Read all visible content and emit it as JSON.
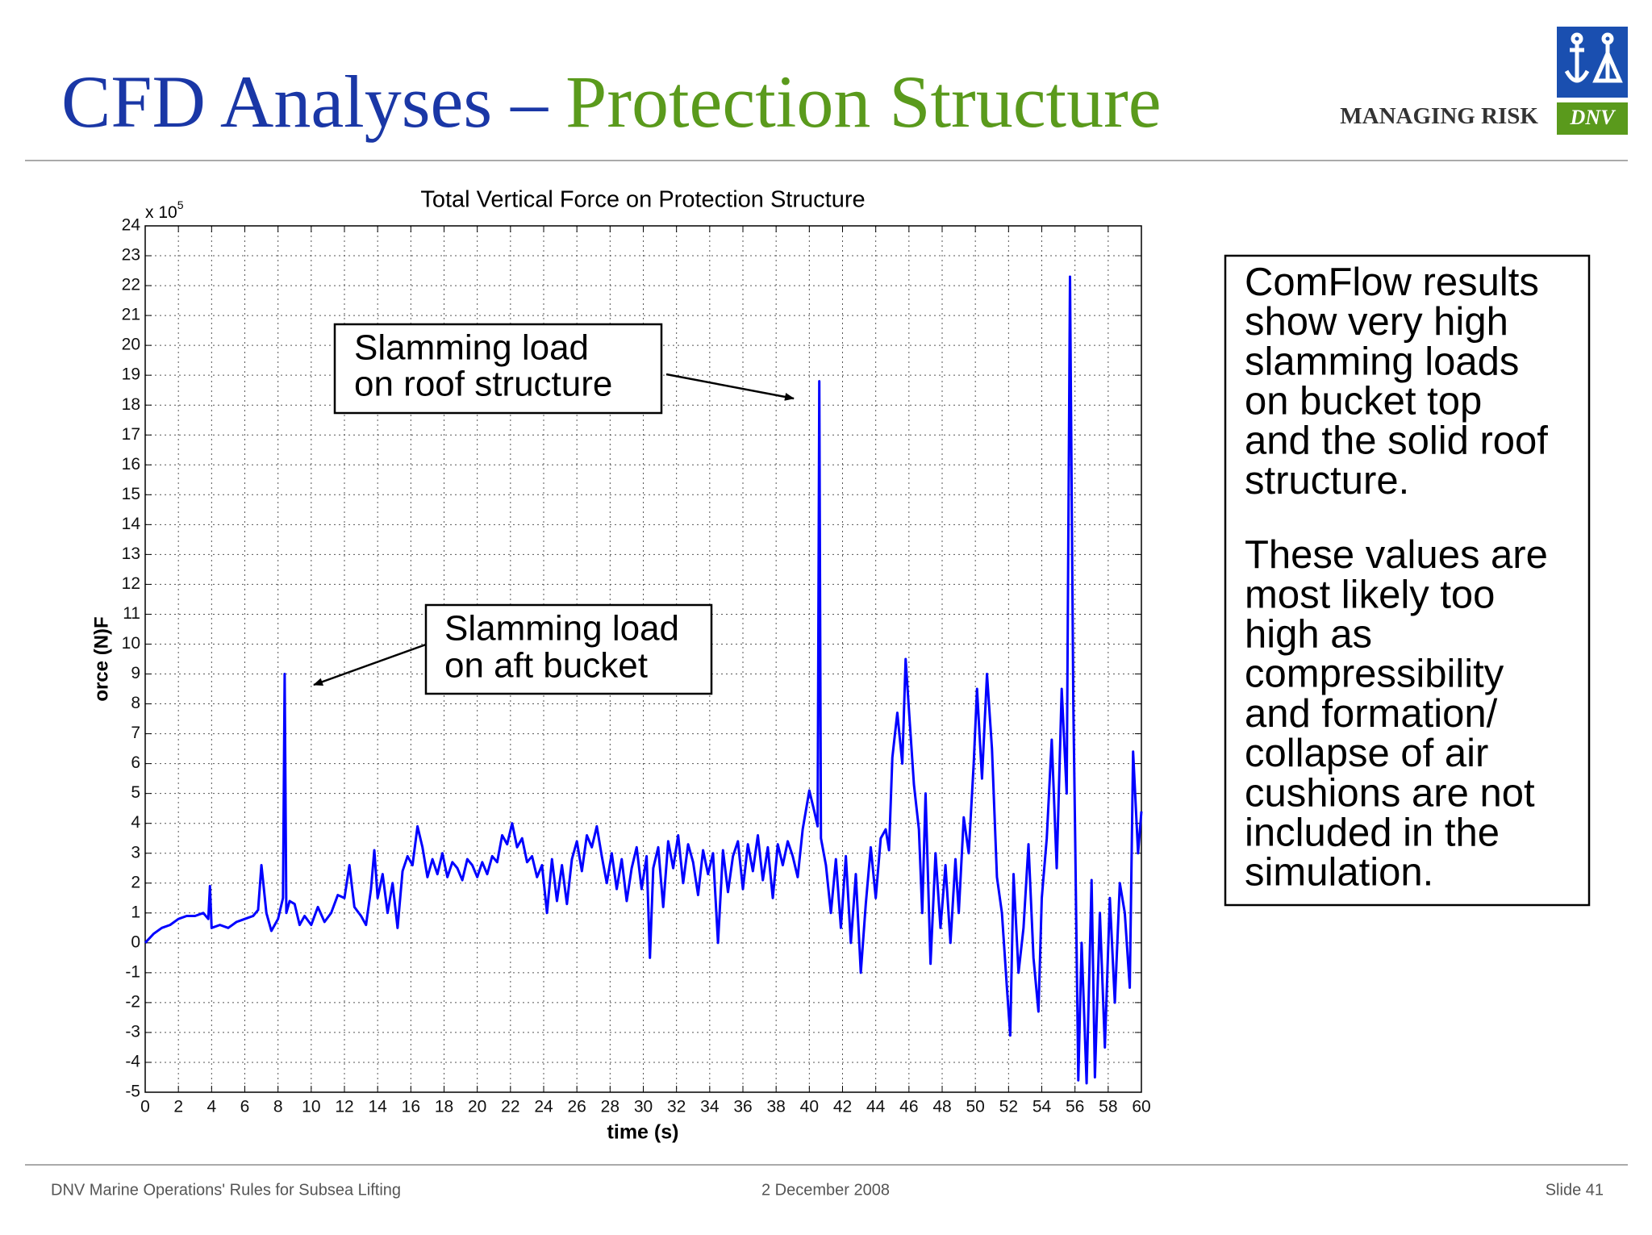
{
  "header": {
    "title_part1": "CFD Analyses –",
    "title_part2": "Protection Structure",
    "tagline": "MANAGING RISK",
    "logo_text": "DNV"
  },
  "chart_data": {
    "type": "line",
    "title": "Total Vertical Force on Protection Structure",
    "x_label": "time (s)",
    "y_label": "orce (N)F",
    "y_multiplier_base": "x 10",
    "y_multiplier_exponent": "5",
    "color": "#0000ff",
    "grid": true,
    "xlim": [
      0,
      60
    ],
    "ylim": [
      -5,
      24
    ],
    "xticks": [
      0,
      2,
      4,
      6,
      8,
      10,
      12,
      14,
      16,
      18,
      20,
      22,
      24,
      26,
      28,
      30,
      32,
      34,
      36,
      38,
      40,
      42,
      44,
      46,
      48,
      50,
      52,
      54,
      56,
      58,
      60
    ],
    "yticks": [
      -5,
      -4,
      -3,
      -2,
      -1,
      0,
      1,
      2,
      3,
      4,
      5,
      6,
      7,
      8,
      9,
      10,
      11,
      12,
      13,
      14,
      15,
      16,
      17,
      18,
      19,
      20,
      21,
      22,
      23,
      24
    ],
    "x": [
      0,
      0.5,
      1,
      1.5,
      2,
      2.5,
      3,
      3.5,
      3.8,
      3.9,
      4,
      4.5,
      5,
      5.5,
      6,
      6.5,
      6.8,
      7,
      7.3,
      7.6,
      8,
      8.3,
      8.4,
      8.5,
      8.7,
      9,
      9.3,
      9.6,
      10,
      10.4,
      10.8,
      11.2,
      11.6,
      12,
      12.3,
      12.6,
      13,
      13.3,
      13.6,
      13.8,
      14,
      14.3,
      14.6,
      14.9,
      15.2,
      15.5,
      15.8,
      16.1,
      16.4,
      16.7,
      17,
      17.3,
      17.6,
      17.9,
      18.2,
      18.5,
      18.8,
      19.1,
      19.4,
      19.7,
      20,
      20.3,
      20.6,
      20.9,
      21.2,
      21.5,
      21.8,
      22.1,
      22.4,
      22.7,
      23,
      23.3,
      23.6,
      23.9,
      24.2,
      24.5,
      24.8,
      25.1,
      25.4,
      25.7,
      26,
      26.3,
      26.6,
      26.9,
      27.2,
      27.5,
      27.8,
      28.1,
      28.4,
      28.7,
      29,
      29.3,
      29.6,
      29.9,
      30.2,
      30.4,
      30.6,
      30.9,
      31.2,
      31.5,
      31.8,
      32.1,
      32.4,
      32.7,
      33,
      33.3,
      33.6,
      33.9,
      34.2,
      34.5,
      34.8,
      35.1,
      35.4,
      35.7,
      36,
      36.3,
      36.6,
      36.9,
      37.2,
      37.5,
      37.8,
      38.1,
      38.4,
      38.7,
      39,
      39.3,
      39.6,
      40,
      40.3,
      40.5,
      40.6,
      40.7,
      41,
      41.3,
      41.6,
      41.9,
      42.2,
      42.5,
      42.8,
      43.1,
      43.4,
      43.7,
      44,
      44.3,
      44.6,
      44.8,
      45,
      45.3,
      45.6,
      45.8,
      46,
      46.3,
      46.6,
      46.8,
      47,
      47.3,
      47.6,
      47.9,
      48.2,
      48.5,
      48.8,
      49,
      49.3,
      49.6,
      49.9,
      50.1,
      50.4,
      50.7,
      51,
      51.3,
      51.6,
      51.9,
      52.1,
      52.3,
      52.6,
      52.9,
      53.2,
      53.5,
      53.8,
      54,
      54.3,
      54.6,
      54.9,
      55.2,
      55.5,
      55.7,
      55.9,
      56,
      56.2,
      56.4,
      56.7,
      57,
      57.2,
      57.5,
      57.8,
      58.1,
      58.4,
      58.7,
      59,
      59.3,
      59.5,
      59.8,
      60
    ],
    "values": [
      0,
      0.3,
      0.5,
      0.6,
      0.8,
      0.9,
      0.9,
      1.0,
      0.8,
      1.9,
      0.5,
      0.6,
      0.5,
      0.7,
      0.8,
      0.9,
      1.1,
      2.6,
      1.0,
      0.4,
      0.8,
      1.5,
      9.0,
      1.0,
      1.4,
      1.3,
      0.6,
      0.9,
      0.6,
      1.2,
      0.7,
      1.0,
      1.6,
      1.5,
      2.6,
      1.2,
      0.9,
      0.6,
      1.8,
      3.1,
      1.5,
      2.3,
      1.0,
      2.0,
      0.5,
      2.4,
      2.9,
      2.6,
      3.9,
      3.2,
      2.2,
      2.8,
      2.3,
      3.0,
      2.2,
      2.7,
      2.5,
      2.1,
      2.8,
      2.6,
      2.2,
      2.7,
      2.3,
      2.9,
      2.7,
      3.6,
      3.3,
      4.0,
      3.2,
      3.5,
      2.7,
      2.9,
      2.2,
      2.6,
      1.0,
      2.8,
      1.4,
      2.6,
      1.3,
      2.8,
      3.4,
      2.4,
      3.6,
      3.2,
      3.9,
      2.9,
      2.0,
      3.0,
      1.8,
      2.8,
      1.4,
      2.5,
      3.2,
      1.8,
      2.9,
      -0.5,
      2.5,
      3.2,
      1.2,
      3.4,
      2.5,
      3.6,
      2.0,
      3.3,
      2.7,
      1.6,
      3.1,
      2.3,
      3.0,
      0.0,
      3.1,
      1.7,
      2.9,
      3.4,
      1.8,
      3.3,
      2.4,
      3.6,
      2.1,
      3.2,
      1.5,
      3.3,
      2.6,
      3.4,
      2.9,
      2.2,
      3.8,
      5.1,
      4.4,
      3.9,
      18.8,
      3.5,
      2.6,
      1.0,
      2.8,
      0.5,
      2.9,
      0.0,
      2.3,
      -1.0,
      1.3,
      3.2,
      1.5,
      3.5,
      3.8,
      3.1,
      6.2,
      7.7,
      6.0,
      9.5,
      7.8,
      5.3,
      3.8,
      1.0,
      5.0,
      -0.7,
      3.0,
      0.5,
      2.6,
      0.0,
      2.8,
      1.0,
      4.2,
      3.0,
      6.0,
      8.5,
      5.5,
      9.0,
      6.5,
      2.2,
      1.0,
      -1.5,
      -3.1,
      2.3,
      -1.0,
      0.5,
      3.3,
      -0.5,
      -2.3,
      1.5,
      3.5,
      6.8,
      2.5,
      8.5,
      5.0,
      22.3,
      8.0,
      4.0,
      -4.6,
      0.0,
      -4.7,
      2.1,
      -4.5,
      1.0,
      -3.5,
      1.5,
      -2.0,
      2.0,
      1.0,
      -1.5,
      6.4,
      3.0,
      4.4
    ],
    "annotations": [
      {
        "lines": [
          "Slamming load",
          "on roof structure"
        ]
      },
      {
        "lines": [
          "Slamming load",
          "on aft bucket"
        ]
      }
    ]
  },
  "textbox": {
    "paragraphs": [
      [
        "ComFlow results",
        "show very high",
        "slamming loads",
        "on bucket top",
        "and the solid roof",
        "structure."
      ],
      [
        "These values are",
        "most likely too",
        "high as",
        "compressibility",
        "and formation/",
        "collapse of air",
        "cushions are not",
        "included in the",
        "simulation."
      ]
    ]
  },
  "footer": {
    "left": "DNV Marine Operations' Rules for Subsea Lifting",
    "center": "2 December 2008",
    "right": "Slide 41"
  }
}
